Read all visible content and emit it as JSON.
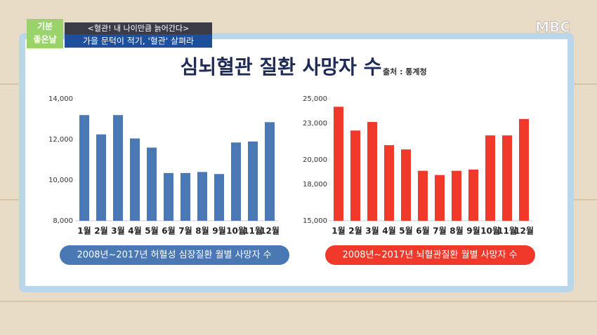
{
  "overlay": {
    "show_logo": [
      "기분",
      "좋은날"
    ],
    "headline": "<혈관! 내 나이만큼 늙어간다>",
    "subheadline": "가을 문턱이 적기, '혈관' 살펴라",
    "channel": "MBC"
  },
  "header": {
    "title": "심뇌혈관 질환 사망자 수",
    "source": "출처 : 통계청"
  },
  "chart_data": [
    {
      "type": "bar",
      "title": "2008년~2017년 허혈성 심장질환 월별 사망자 수",
      "color": "#4a78b4",
      "grid": false,
      "categories": [
        "1월",
        "2월",
        "3월",
        "4월",
        "5월",
        "6월",
        "7월",
        "8월",
        "9월",
        "10월",
        "11월",
        "12월"
      ],
      "values": [
        13200,
        12250,
        13200,
        12050,
        11600,
        10350,
        10350,
        10400,
        10300,
        11850,
        11900,
        12850
      ],
      "ylim": [
        8000,
        14000
      ],
      "yticks": [
        {
          "value": 8000,
          "label": "8,000"
        },
        {
          "value": 10000,
          "label": "10,000"
        },
        {
          "value": 12000,
          "label": "12,000"
        },
        {
          "value": 14000,
          "label": "14,000"
        }
      ]
    },
    {
      "type": "bar",
      "title": "2008년~2017년 뇌혈관질환 월별 사망자 수",
      "color": "#f0392b",
      "grid": false,
      "categories": [
        "1월",
        "2월",
        "3월",
        "4월",
        "5월",
        "6월",
        "7월",
        "8월",
        "9월",
        "10월",
        "11월",
        "12월"
      ],
      "values": [
        24350,
        22400,
        23100,
        21200,
        20850,
        19100,
        18750,
        19100,
        19200,
        22000,
        22000,
        23350
      ],
      "ylim": [
        15000,
        25000
      ],
      "yticks": [
        {
          "value": 15000,
          "label": "15,000"
        },
        {
          "value": 18000,
          "label": "18,000"
        },
        {
          "value": 20000,
          "label": "20,000"
        },
        {
          "value": 23000,
          "label": "23,000"
        },
        {
          "value": 25000,
          "label": "25,000"
        }
      ]
    }
  ]
}
